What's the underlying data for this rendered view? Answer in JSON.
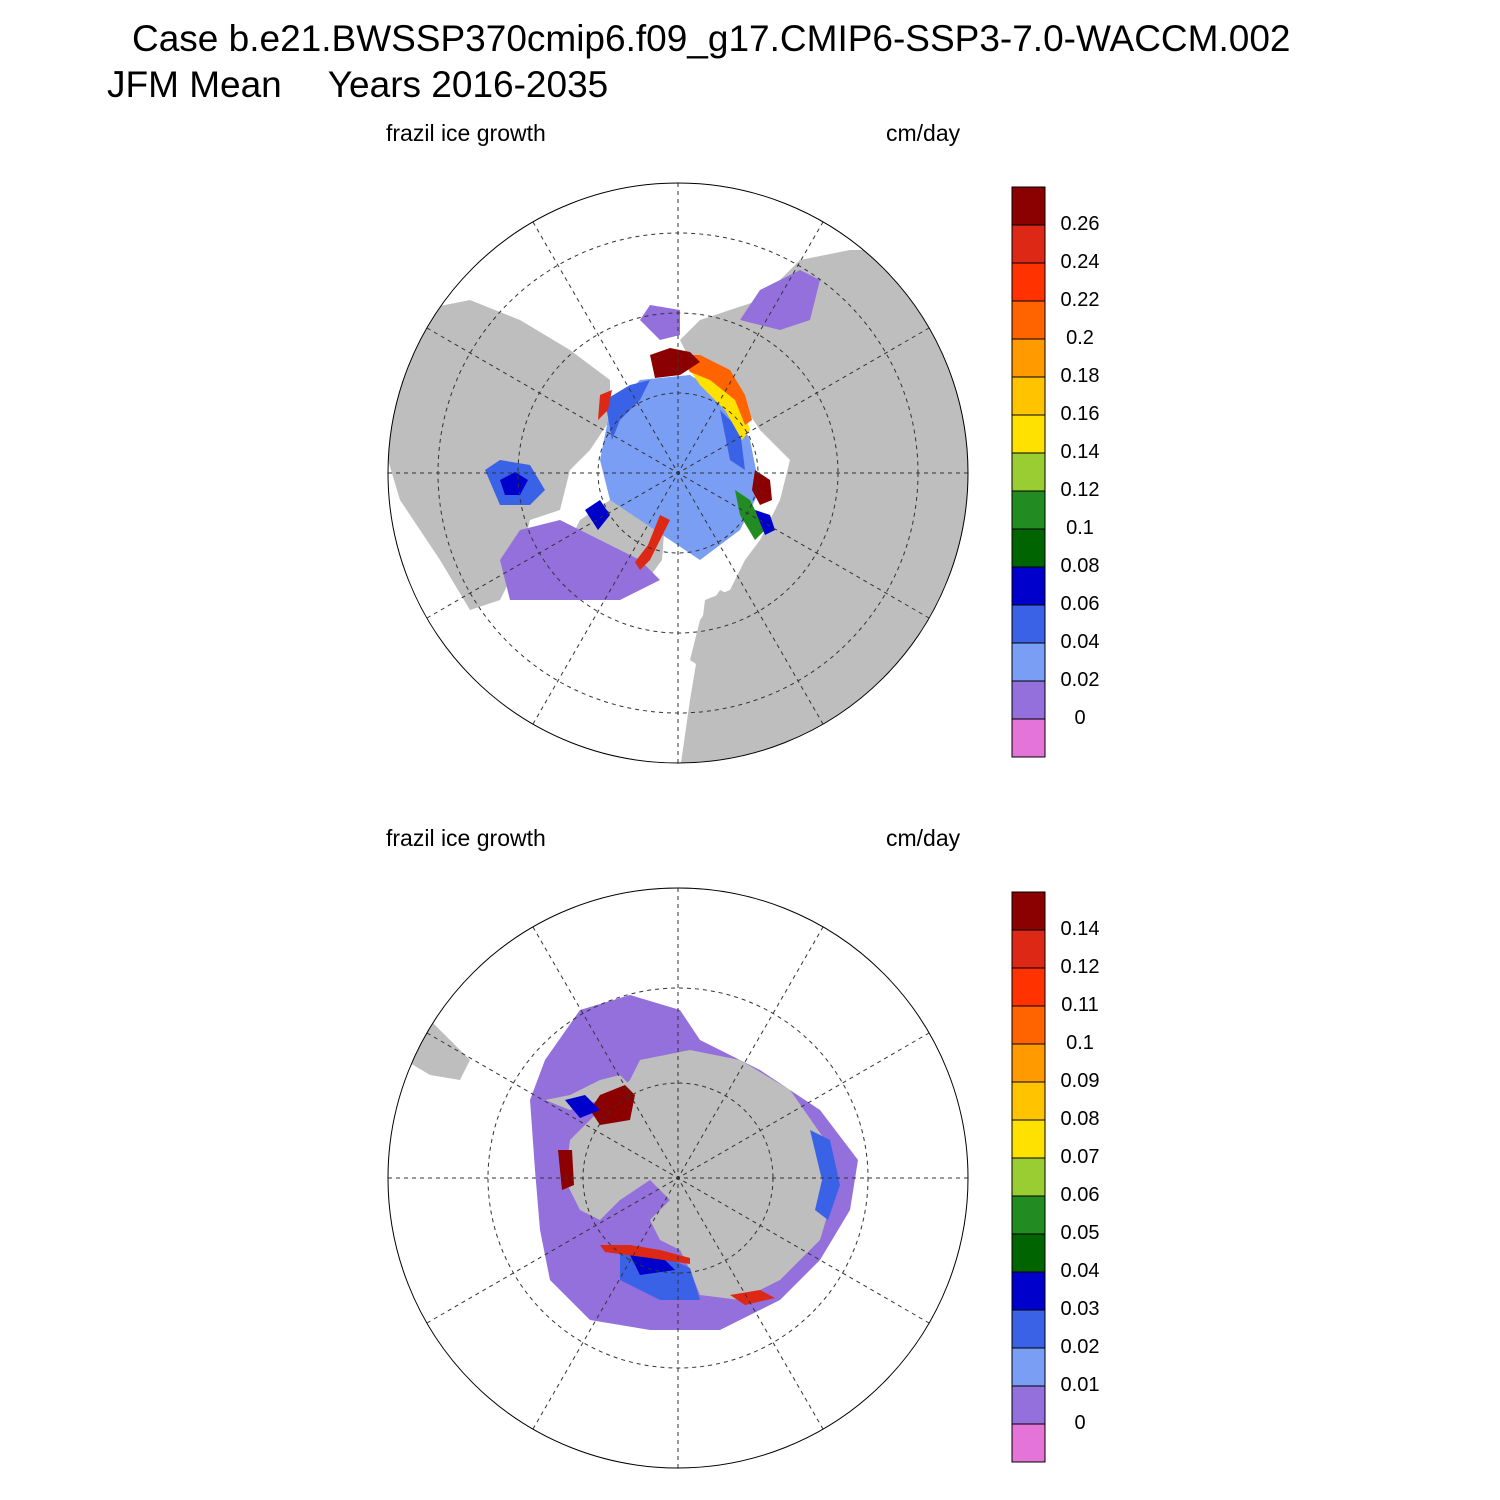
{
  "header": {
    "case_line": "Case b.e21.BWSSP370cmip6.f09_g17.CMIP6-SSP3-7.0-WACCM.002",
    "season": "JFM Mean",
    "years": "Years 2016-2035"
  },
  "colors": {
    "land": "#bebebe",
    "background": "#ffffff",
    "palette": [
      "#e574d9",
      "#9370db",
      "#7a9ef4",
      "#3a62e6",
      "#0000cc",
      "#006400",
      "#228b22",
      "#9acd32",
      "#ffe100",
      "#ffc300",
      "#ff9a00",
      "#ff6400",
      "#ff3200",
      "#dc2814",
      "#8b0000"
    ]
  },
  "panels": [
    {
      "id": "north",
      "hemisphere": "Arctic",
      "field_label": "frazil ice growth",
      "units_label": "cm/day",
      "colorbar_labels": [
        "0",
        "0.02",
        "0.04",
        "0.06",
        "0.08",
        "0.1",
        "0.12",
        "0.14",
        "0.16",
        "0.18",
        "0.2",
        "0.22",
        "0.24",
        "0.26"
      ]
    },
    {
      "id": "south",
      "hemisphere": "Antarctic",
      "field_label": "frazil ice growth",
      "units_label": "cm/day",
      "colorbar_labels": [
        "0",
        "0.01",
        "0.02",
        "0.03",
        "0.04",
        "0.05",
        "0.06",
        "0.07",
        "0.08",
        "0.09",
        "0.1",
        "0.11",
        "0.12",
        "0.14"
      ]
    }
  ]
}
